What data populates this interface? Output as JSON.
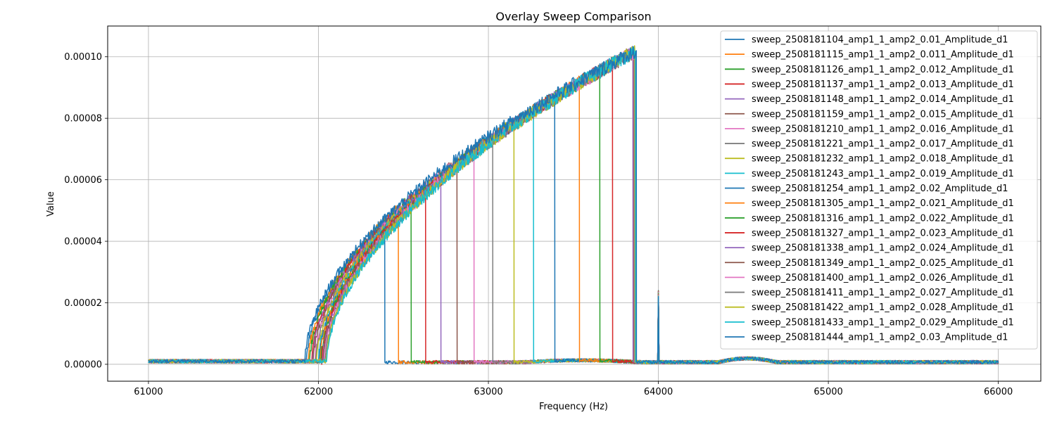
{
  "chart_data": {
    "type": "line",
    "title": "Overlay Sweep Comparison",
    "xlabel": "Frequency (Hz)",
    "ylabel": "Value",
    "xlim": [
      60760,
      66250
    ],
    "ylim": [
      -5.5e-06,
      0.00011
    ],
    "xticks": [
      61000,
      62000,
      63000,
      64000,
      65000,
      66000
    ],
    "xtick_labels": [
      "61000",
      "62000",
      "63000",
      "64000",
      "65000",
      "66000"
    ],
    "yticks": [
      0,
      2e-05,
      4e-05,
      6e-05,
      8e-05,
      0.0001
    ],
    "ytick_labels": [
      "0.00000",
      "0.00002",
      "0.00004",
      "0.00006",
      "0.00008",
      "0.00010"
    ],
    "grid": true,
    "legend_position": "top-right",
    "sweep_range": [
      61000,
      66000
    ],
    "noise_floor": 1e-06,
    "end_amplitude": 0.000102,
    "spur_frequency": 64000,
    "spur_amplitude": 2.4e-05,
    "series": [
      {
        "name": "sweep_2508181104_amp1_1_amp2_0.01_Amplitude_d1",
        "color": "#1f77b4",
        "onset": 61930,
        "drop": 62390
      },
      {
        "name": "sweep_2508181115_amp1_1_amp2_0.011_Amplitude_d1",
        "color": "#ff7f0e",
        "onset": 61940,
        "drop": 62470
      },
      {
        "name": "sweep_2508181126_amp1_1_amp2_0.012_Amplitude_d1",
        "color": "#2ca02c",
        "onset": 61950,
        "drop": 62545
      },
      {
        "name": "sweep_2508181137_amp1_1_amp2_0.013_Amplitude_d1",
        "color": "#d62728",
        "onset": 61960,
        "drop": 62630
      },
      {
        "name": "sweep_2508181148_amp1_1_amp2_0.014_Amplitude_d1",
        "color": "#9467bd",
        "onset": 61965,
        "drop": 62720
      },
      {
        "name": "sweep_2508181159_amp1_1_amp2_0.015_Amplitude_d1",
        "color": "#8c564b",
        "onset": 61970,
        "drop": 62815
      },
      {
        "name": "sweep_2508181210_amp1_1_amp2_0.016_Amplitude_d1",
        "color": "#e377c2",
        "onset": 61980,
        "drop": 62915
      },
      {
        "name": "sweep_2508181221_amp1_1_amp2_0.017_Amplitude_d1",
        "color": "#7f7f7f",
        "onset": 61985,
        "drop": 63025
      },
      {
        "name": "sweep_2508181232_amp1_1_amp2_0.018_Amplitude_d1",
        "color": "#bcbd22",
        "onset": 61990,
        "drop": 63150
      },
      {
        "name": "sweep_2508181243_amp1_1_amp2_0.019_Amplitude_d1",
        "color": "#17becf",
        "onset": 62000,
        "drop": 63265
      },
      {
        "name": "sweep_2508181254_amp1_1_amp2_0.02_Amplitude_d1",
        "color": "#1f77b4",
        "onset": 62005,
        "drop": 63390
      },
      {
        "name": "sweep_2508181305_amp1_1_amp2_0.021_Amplitude_d1",
        "color": "#ff7f0e",
        "onset": 62010,
        "drop": 63535
      },
      {
        "name": "sweep_2508181316_amp1_1_amp2_0.022_Amplitude_d1",
        "color": "#2ca02c",
        "onset": 62015,
        "drop": 63655
      },
      {
        "name": "sweep_2508181327_amp1_1_amp2_0.023_Amplitude_d1",
        "color": "#d62728",
        "onset": 62020,
        "drop": 63730
      },
      {
        "name": "sweep_2508181338_amp1_1_amp2_0.024_Amplitude_d1",
        "color": "#9467bd",
        "onset": 62025,
        "drop": 63850
      },
      {
        "name": "sweep_2508181349_amp1_1_amp2_0.025_Amplitude_d1",
        "color": "#8c564b",
        "onset": 62030,
        "drop": 63855
      },
      {
        "name": "sweep_2508181400_amp1_1_amp2_0.026_Amplitude_d1",
        "color": "#e377c2",
        "onset": 62035,
        "drop": 63858
      },
      {
        "name": "sweep_2508181411_amp1_1_amp2_0.027_Amplitude_d1",
        "color": "#7f7f7f",
        "onset": 62040,
        "drop": 63860
      },
      {
        "name": "sweep_2508181422_amp1_1_amp2_0.028_Amplitude_d1",
        "color": "#bcbd22",
        "onset": 62045,
        "drop": 63862
      },
      {
        "name": "sweep_2508181433_amp1_1_amp2_0.029_Amplitude_d1",
        "color": "#17becf",
        "onset": 62050,
        "drop": 63865
      },
      {
        "name": "sweep_2508181444_amp1_1_amp2_0.03_Amplitude_d1",
        "color": "#1f77b4",
        "onset": 61920,
        "drop": 63870
      }
    ]
  }
}
